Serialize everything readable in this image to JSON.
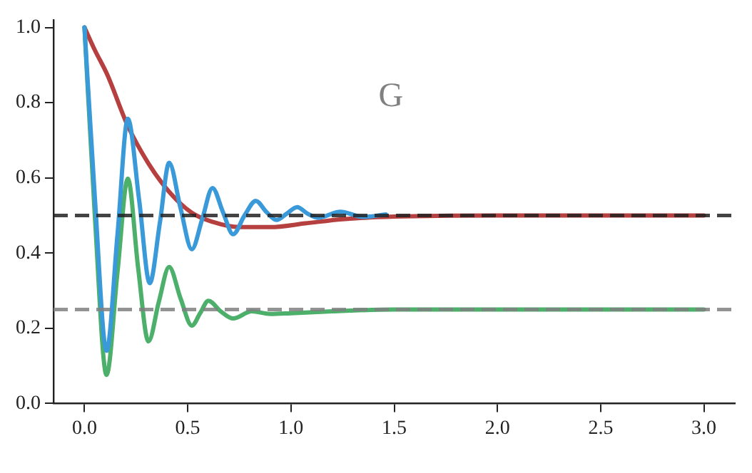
{
  "chart_data": {
    "type": "line",
    "xlim": [
      -0.15,
      3.15
    ],
    "ylim": [
      0,
      1.02
    ],
    "xticks": [
      {
        "value": 0,
        "label": "0.0"
      },
      {
        "value": 0.5,
        "label": "0.5"
      },
      {
        "value": 1,
        "label": "1.0"
      },
      {
        "value": 1.5,
        "label": "1.5"
      },
      {
        "value": 2,
        "label": "2.0"
      },
      {
        "value": 2.5,
        "label": "2.5"
      },
      {
        "value": 3,
        "label": "3.0"
      }
    ],
    "yticks": [
      {
        "value": 0,
        "label": "0.0"
      },
      {
        "value": 0.2,
        "label": "0.2"
      },
      {
        "value": 0.4,
        "label": "0.4"
      },
      {
        "value": 0.6,
        "label": "0.6"
      },
      {
        "value": 0.8,
        "label": "0.8"
      },
      {
        "value": 1,
        "label": "1.0"
      }
    ],
    "grid": false,
    "legend": false,
    "marker": "none",
    "line_style": "solid",
    "series": [
      {
        "color": "#3a9ad9",
        "x": [
          0,
          0.05,
          0.107,
          0.16,
          0.21,
          0.265,
          0.316,
          0.365,
          0.41,
          0.465,
          0.52,
          0.57,
          0.62,
          0.67,
          0.72,
          0.775,
          0.83,
          0.88,
          0.93,
          0.98,
          1.03,
          1.08,
          1.13,
          1.24,
          1.35,
          1.46
        ],
        "values": [
          1.0,
          0.55,
          0.14,
          0.45,
          0.757,
          0.54,
          0.32,
          0.48,
          0.64,
          0.52,
          0.41,
          0.49,
          0.573,
          0.51,
          0.45,
          0.5,
          0.539,
          0.51,
          0.488,
          0.505,
          0.522,
          0.505,
          0.494,
          0.51,
          0.496,
          0.503
        ]
      },
      {
        "color": "#4caf6a",
        "x": [
          0,
          0.05,
          0.107,
          0.16,
          0.21,
          0.26,
          0.31,
          0.36,
          0.41,
          0.465,
          0.52,
          0.56,
          0.6,
          0.66,
          0.72,
          0.81,
          0.9,
          1.0,
          1.2,
          1.5,
          2.0,
          3.0
        ],
        "values": [
          1.0,
          0.5,
          0.076,
          0.35,
          0.598,
          0.36,
          0.165,
          0.27,
          0.363,
          0.28,
          0.207,
          0.24,
          0.273,
          0.245,
          0.226,
          0.245,
          0.238,
          0.24,
          0.245,
          0.25,
          0.25,
          0.25
        ]
      },
      {
        "color": "#b5403f",
        "x": [
          0,
          0.05,
          0.11,
          0.21,
          0.31,
          0.41,
          0.52,
          0.62,
          0.75,
          0.9,
          1.07,
          1.25,
          1.5,
          2.0,
          3.0
        ],
        "values": [
          1.0,
          0.94,
          0.875,
          0.738,
          0.638,
          0.563,
          0.507,
          0.483,
          0.469,
          0.469,
          0.479,
          0.49,
          0.497,
          0.5,
          0.5
        ]
      }
    ],
    "ref_lines": [
      {
        "axis": "y",
        "value": 0.5,
        "color": "#222222",
        "line_style": "dashed"
      },
      {
        "axis": "y",
        "value": 0.25,
        "color": "#808080",
        "line_style": "dashed"
      }
    ],
    "annotations": [
      "G"
    ]
  }
}
